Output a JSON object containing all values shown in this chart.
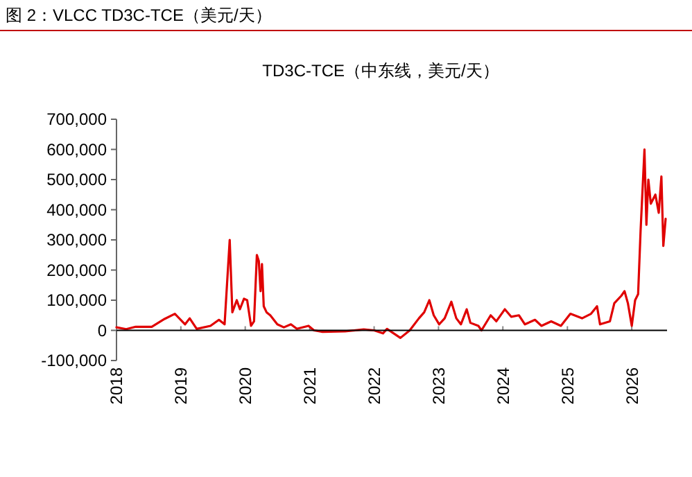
{
  "chart_data": {
    "type": "line",
    "title": "图 2：VLCC TD3C-TCE（美元/天）",
    "subtitle": "TD3C-TCE（中东线，美元/天）",
    "x": [
      "2018-01-01",
      "2018-02-25",
      "2018-04-20",
      "2018-07-20",
      "2018-10-01",
      "2018-11-28",
      "2019-01-25",
      "2019-02-20",
      "2019-04-01",
      "2019-06-18",
      "2019-08-05",
      "2019-09-06",
      "2019-10-05",
      "2019-10-20",
      "2019-11-14",
      "2019-12-02",
      "2019-12-25",
      "2020-01-12",
      "2020-02-03",
      "2020-02-20",
      "2020-03-07",
      "2020-03-18",
      "2020-03-28",
      "2020-04-05",
      "2020-04-15",
      "2020-05-01",
      "2020-05-22",
      "2020-07-01",
      "2020-08-07",
      "2020-09-16",
      "2020-10-20",
      "2020-12-25",
      "2021-01-25",
      "2021-03-15",
      "2021-07-20",
      "2021-11-03",
      "2022-01-01",
      "2022-02-20",
      "2022-03-15",
      "2022-05-30",
      "2022-07-22",
      "2022-09-12",
      "2022-10-12",
      "2022-11-10",
      "2022-12-05",
      "2023-01-05",
      "2023-02-05",
      "2023-03-15",
      "2023-04-12",
      "2023-05-08",
      "2023-06-10",
      "2023-07-01",
      "2023-08-15",
      "2023-09-02",
      "2023-10-24",
      "2023-11-25",
      "2024-01-12",
      "2024-02-18",
      "2024-04-01",
      "2024-05-05",
      "2024-07-01",
      "2024-08-07",
      "2024-10-01",
      "2024-11-25",
      "2025-01-18",
      "2025-03-25",
      "2025-05-15",
      "2025-06-18",
      "2025-07-05",
      "2025-08-30",
      "2025-09-24",
      "2025-11-03",
      "2025-11-21",
      "2025-12-10",
      "2026-01-01",
      "2026-01-20",
      "2026-02-06",
      "2026-02-20",
      "2026-03-14",
      "2026-03-25",
      "2026-04-05",
      "2026-04-19",
      "2026-05-15",
      "2026-06-03",
      "2026-06-18",
      "2026-06-29",
      "2026-07-12"
    ],
    "series": [
      {
        "color": "#e00000",
        "values": [
          10000,
          4000,
          12000,
          12000,
          38000,
          55000,
          20000,
          40000,
          5000,
          15000,
          35000,
          20000,
          300000,
          60000,
          100000,
          70000,
          105000,
          100000,
          15000,
          30000,
          250000,
          230000,
          130000,
          220000,
          80000,
          60000,
          50000,
          20000,
          10000,
          20000,
          5000,
          15000,
          0,
          -5000,
          -3000,
          3000,
          0,
          -10000,
          5000,
          -25000,
          0,
          40000,
          60000,
          100000,
          50000,
          20000,
          40000,
          95000,
          40000,
          20000,
          70000,
          25000,
          15000,
          0,
          50000,
          30000,
          70000,
          45000,
          50000,
          20000,
          35000,
          15000,
          30000,
          15000,
          55000,
          40000,
          55000,
          80000,
          20000,
          30000,
          90000,
          115000,
          130000,
          90000,
          15000,
          100000,
          120000,
          330000,
          600000,
          350000,
          500000,
          420000,
          450000,
          390000,
          510000,
          280000,
          370000
        ]
      }
    ],
    "xlim": [
      "2018-01-01",
      "2026-07-20"
    ],
    "xticks": [
      "2018",
      "2019",
      "2020",
      "2021",
      "2022",
      "2023",
      "2024",
      "2025",
      "2026"
    ],
    "ylim": [
      -100000,
      700000
    ],
    "yticks": [
      {
        "value": -100000,
        "label": "-100,000"
      },
      {
        "value": 0,
        "label": "0"
      },
      {
        "value": 100000,
        "label": "100,000"
      },
      {
        "value": 200000,
        "label": "200,000"
      },
      {
        "value": 300000,
        "label": "300,000"
      },
      {
        "value": 400000,
        "label": "400,000"
      },
      {
        "value": 500000,
        "label": "500,000"
      },
      {
        "value": 600000,
        "label": "600,000"
      },
      {
        "value": 700000,
        "label": "700,000"
      }
    ],
    "grid": false
  }
}
